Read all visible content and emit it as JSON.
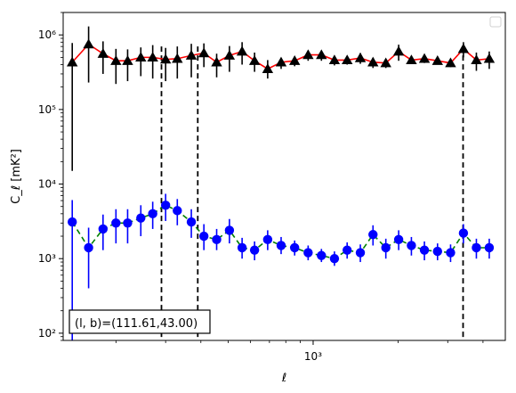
{
  "chart_data": {
    "type": "scatter",
    "title": "",
    "xlabel": "ℓ",
    "ylabel": "C_ℓ [mK²]",
    "xscale": "log",
    "yscale": "log",
    "xlim": [
      130,
      4800
    ],
    "ylim": [
      80,
      2000000
    ],
    "x_major_ticks": [
      {
        "value": 1000,
        "label": "10³"
      }
    ],
    "y_major_ticks": [
      {
        "value": 100,
        "label": "10²"
      },
      {
        "value": 1000,
        "label": "10³"
      },
      {
        "value": 10000,
        "label": "10⁴"
      },
      {
        "value": 100000,
        "label": "10⁵"
      },
      {
        "value": 1000000,
        "label": "10⁶"
      }
    ],
    "grid": false,
    "legend": {
      "placement": "top-right",
      "entries": []
    },
    "annotation": "(l, b)=(111.61,43.00)",
    "vlines": [
      {
        "x": 290,
        "style": "dashed",
        "color": "#000000"
      },
      {
        "x": 390,
        "style": "dashed",
        "color": "#000000"
      },
      {
        "x": 3400,
        "style": "dashed",
        "color": "#000000"
      }
    ],
    "series": [
      {
        "marker": "triangle",
        "marker_color": "#000000",
        "errorbar_color": "#000000",
        "line_color": "#ff0000",
        "line_style": "solid",
        "x": [
          140,
          160,
          180,
          200,
          220,
          245,
          270,
          300,
          330,
          370,
          410,
          455,
          505,
          560,
          620,
          690,
          770,
          860,
          960,
          1070,
          1190,
          1320,
          1470,
          1630,
          1810,
          2010,
          2230,
          2480,
          2760,
          3070,
          3410,
          3790,
          4210
        ],
        "y": [
          430000,
          750000,
          560000,
          450000,
          450000,
          500000,
          500000,
          470000,
          480000,
          530000,
          570000,
          430000,
          530000,
          600000,
          450000,
          350000,
          430000,
          450000,
          540000,
          540000,
          460000,
          460000,
          490000,
          430000,
          420000,
          600000,
          460000,
          480000,
          450000,
          420000,
          650000,
          460000,
          480000
        ],
        "yerr_low": [
          415000,
          520000,
          260000,
          230000,
          210000,
          220000,
          240000,
          230000,
          220000,
          260000,
          200000,
          160000,
          210000,
          200000,
          130000,
          90000,
          80000,
          70000,
          90000,
          90000,
          70000,
          60000,
          80000,
          70000,
          60000,
          150000,
          50000,
          60000,
          50000,
          50000,
          150000,
          130000,
          130000
        ],
        "yerr_high": [
          350000,
          550000,
          260000,
          200000,
          190000,
          180000,
          230000,
          200000,
          220000,
          230000,
          200000,
          130000,
          180000,
          200000,
          130000,
          110000,
          60000,
          60000,
          80000,
          70000,
          60000,
          50000,
          80000,
          60000,
          50000,
          140000,
          50000,
          60000,
          50000,
          60000,
          150000,
          120000,
          120000
        ]
      },
      {
        "marker": "circle",
        "marker_color": "#0000ff",
        "errorbar_color": "#0000ff",
        "line_color": "#008000",
        "line_style": "dashed",
        "x": [
          140,
          160,
          180,
          200,
          220,
          245,
          270,
          300,
          330,
          370,
          410,
          455,
          505,
          560,
          620,
          690,
          770,
          860,
          960,
          1070,
          1190,
          1320,
          1470,
          1630,
          1810,
          2010,
          2230,
          2480,
          2760,
          3070,
          3410,
          3790,
          4210
        ],
        "y": [
          3100,
          1400,
          2500,
          3000,
          3000,
          3500,
          4000,
          5200,
          4400,
          3100,
          2000,
          1800,
          2400,
          1400,
          1300,
          1800,
          1500,
          1400,
          1200,
          1100,
          1000,
          1300,
          1200,
          2100,
          1400,
          1800,
          1500,
          1300,
          1250,
          1200,
          2200,
          1400,
          1400
        ],
        "yerr_low": [
          3020,
          1000,
          1200,
          1400,
          1400,
          1500,
          1500,
          2000,
          1600,
          1200,
          700,
          500,
          800,
          400,
          350,
          500,
          350,
          300,
          250,
          200,
          200,
          300,
          300,
          600,
          400,
          500,
          400,
          350,
          300,
          300,
          600,
          400,
          400
        ],
        "yerr_high": [
          3000,
          1200,
          1400,
          1600,
          1600,
          1700,
          1800,
          2200,
          1900,
          1500,
          900,
          700,
          1000,
          500,
          400,
          600,
          450,
          350,
          300,
          250,
          250,
          350,
          350,
          700,
          450,
          600,
          450,
          400,
          350,
          350,
          700,
          450,
          450
        ]
      }
    ]
  }
}
